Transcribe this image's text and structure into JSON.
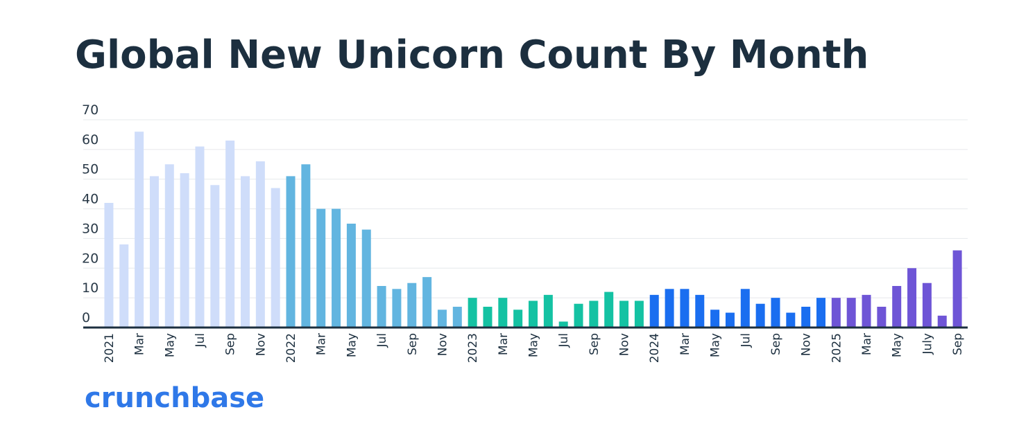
{
  "chart_data": {
    "type": "bar",
    "title": "Global New Unicorn Count By Month",
    "categories": [
      "2021",
      null,
      "Mar",
      null,
      "May",
      null,
      "Jul",
      null,
      "Sep",
      null,
      "Nov",
      null,
      "2022",
      null,
      "Mar",
      null,
      "May",
      null,
      "Jul",
      null,
      "Sep",
      null,
      "Nov",
      null,
      "2023",
      null,
      "Mar",
      null,
      "May",
      null,
      "Jul",
      null,
      "Sep",
      null,
      "Nov",
      null,
      "2024",
      null,
      "Mar",
      null,
      "May",
      null,
      "Jul",
      null,
      "Sep",
      null,
      "Nov",
      null,
      "2025",
      null,
      "Mar",
      null,
      "May",
      null,
      "July",
      null,
      "Sep"
    ],
    "values": [
      42,
      28,
      66,
      51,
      55,
      52,
      61,
      48,
      63,
      51,
      56,
      47,
      51,
      55,
      40,
      40,
      35,
      33,
      14,
      13,
      15,
      17,
      6,
      7,
      10,
      7,
      10,
      6,
      9,
      11,
      2,
      8,
      9,
      12,
      9,
      9,
      11,
      13,
      13,
      11,
      6,
      5,
      13,
      8,
      10,
      5,
      7,
      10,
      10,
      10,
      11,
      7,
      14,
      20,
      15,
      4,
      26
    ],
    "colors": [
      "#cfddfa",
      "#cfddfa",
      "#cfddfa",
      "#cfddfa",
      "#cfddfa",
      "#cfddfa",
      "#cfddfa",
      "#cfddfa",
      "#cfddfa",
      "#cfddfa",
      "#cfddfa",
      "#cfddfa",
      "#62b5e0",
      "#62b5e0",
      "#62b5e0",
      "#62b5e0",
      "#62b5e0",
      "#62b5e0",
      "#62b5e0",
      "#62b5e0",
      "#62b5e0",
      "#62b5e0",
      "#62b5e0",
      "#62b5e0",
      "#14c2a3",
      "#14c2a3",
      "#14c2a3",
      "#14c2a3",
      "#14c2a3",
      "#14c2a3",
      "#14c2a3",
      "#14c2a3",
      "#14c2a3",
      "#14c2a3",
      "#14c2a3",
      "#14c2a3",
      "#1a6ef0",
      "#1a6ef0",
      "#1a6ef0",
      "#1a6ef0",
      "#1a6ef0",
      "#1a6ef0",
      "#1a6ef0",
      "#1a6ef0",
      "#1a6ef0",
      "#1a6ef0",
      "#1a6ef0",
      "#1a6ef0",
      "#6e55d6",
      "#6e55d6",
      "#6e55d6",
      "#6e55d6",
      "#6e55d6",
      "#6e55d6",
      "#6e55d6",
      "#6e55d6",
      "#6e55d6"
    ],
    "ylim": [
      0,
      70
    ],
    "yticks": [
      0,
      10,
      20,
      30,
      40,
      50,
      60,
      70
    ],
    "grid": true
  },
  "logo": "crunchbase"
}
